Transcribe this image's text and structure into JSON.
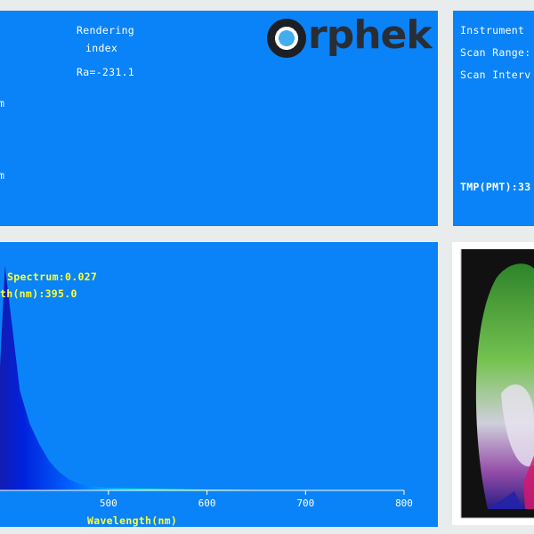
{
  "brand": {
    "name": "rphek"
  },
  "rendering": {
    "title_line1": "Rendering",
    "title_line2": "index",
    "ra": "Ra=-231.1",
    "side_marks": [
      "m",
      "m"
    ]
  },
  "instrument": {
    "line1": "Instrument",
    "line2": "Scan Range:",
    "line3": "Scan Interv",
    "tmp": "TMP(PMT):33"
  },
  "spectrum": {
    "peak_label": "Spectrum:0.027",
    "peak_wavelength_label": "th(nm):395.0"
  },
  "colors": {
    "panel_bg": "#0a83f8",
    "label_yellow": "#ffff33",
    "background": "#e9ecec"
  },
  "chart_data": {
    "type": "area",
    "xlabel": "Wavelength(nm)",
    "ylabel": "",
    "xlim": [
      380,
      800
    ],
    "ylim": [
      0,
      0.027
    ],
    "x_ticks": [
      500,
      600,
      700,
      800
    ],
    "x": [
      380,
      390,
      395,
      400,
      405,
      410,
      420,
      430,
      440,
      450,
      460,
      470,
      480,
      500,
      550,
      600,
      650,
      700,
      800
    ],
    "y": [
      0.0,
      0.015,
      0.027,
      0.022,
      0.017,
      0.012,
      0.008,
      0.0055,
      0.0035,
      0.0022,
      0.0013,
      0.0008,
      0.0005,
      0.0003,
      0.0002,
      0.0001,
      5e-05,
      3e-05,
      0.0
    ],
    "grid": false
  }
}
